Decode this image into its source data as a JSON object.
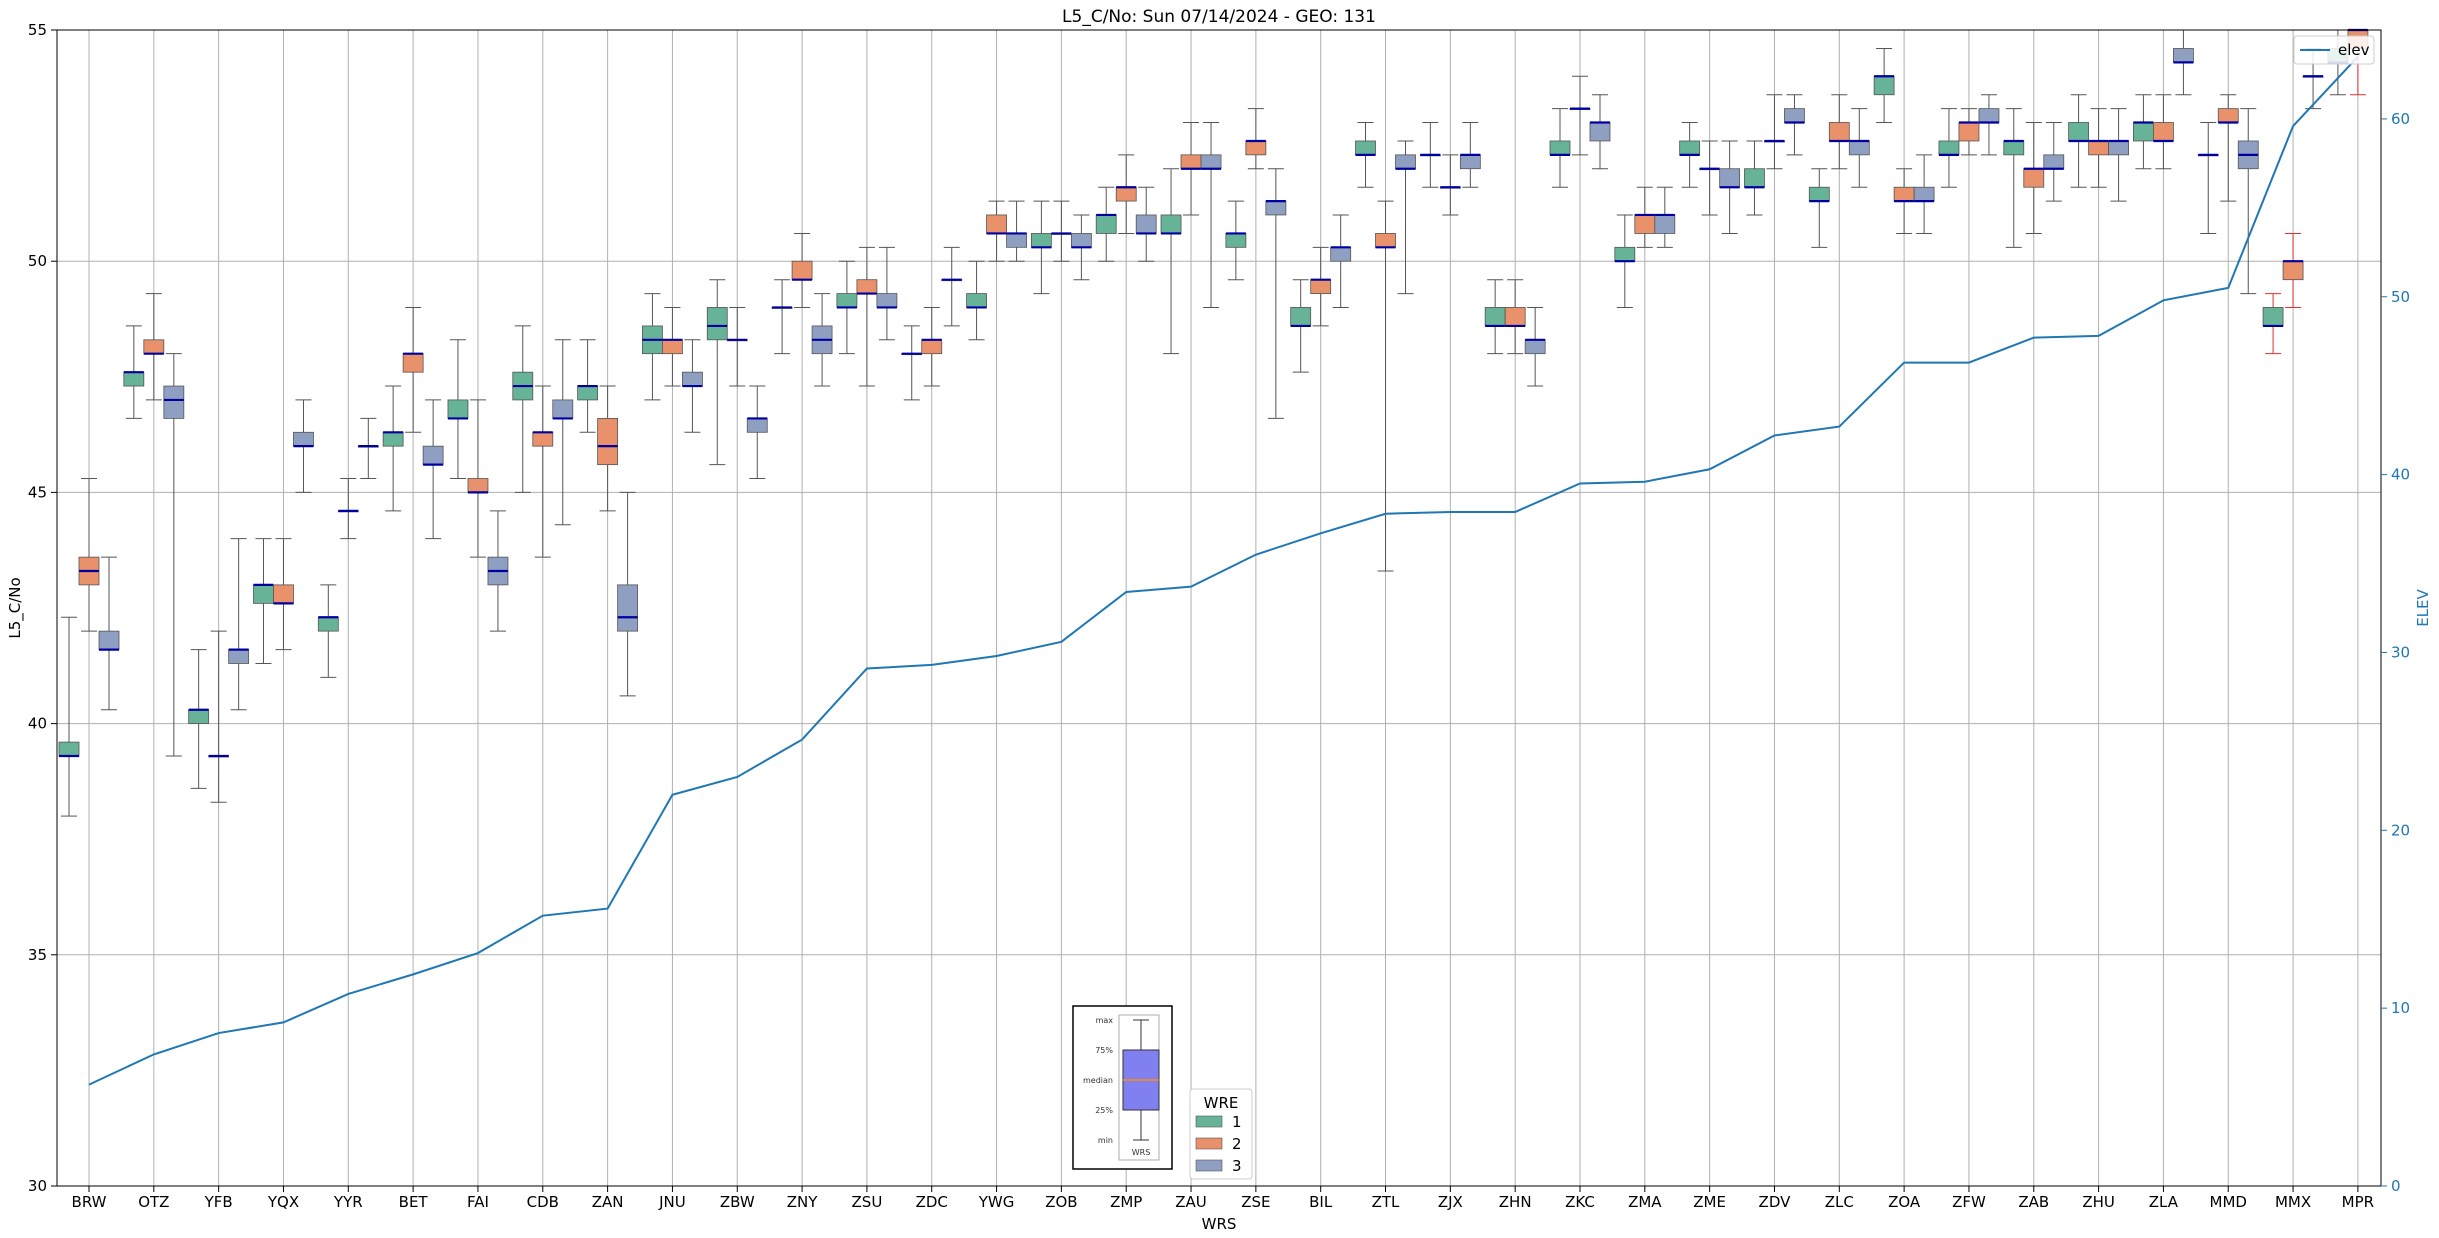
{
  "chart_data": {
    "type": "box",
    "title": "L5_C/No: Sun 07/14/2024 - GEO: 131",
    "xlabel": "WRS",
    "ylabel": "L5_C/No",
    "y2label": "ELEV",
    "ylim": [
      30,
      55
    ],
    "y2lim": [
      0,
      65
    ],
    "yticks": [
      30,
      35,
      40,
      45,
      50,
      55
    ],
    "y2ticks": [
      0,
      10,
      20,
      30,
      40,
      50,
      60
    ],
    "grid": true,
    "categories": [
      "BRW",
      "OTZ",
      "YFB",
      "YQX",
      "YYR",
      "BET",
      "FAI",
      "CDB",
      "ZAN",
      "JNU",
      "ZBW",
      "ZNY",
      "ZSU",
      "ZDC",
      "YWG",
      "ZOB",
      "ZMP",
      "ZAU",
      "ZSE",
      "BIL",
      "ZTL",
      "ZJX",
      "ZHN",
      "ZKC",
      "ZMA",
      "ZME",
      "ZDV",
      "ZLC",
      "ZOA",
      "ZFW",
      "ZAB",
      "ZHU",
      "ZLA",
      "MMD",
      "MMX",
      "MPR"
    ],
    "wre_colors": {
      "1": "#66b398",
      "2": "#e8916a",
      "3": "#8f9fc2"
    },
    "outlier_whisker_color": "#e03030",
    "boxes": [
      {
        "cat": "BRW",
        "wre": 1,
        "min": 38.0,
        "q1": 39.3,
        "med": 39.3,
        "q3": 39.6,
        "max": 42.3
      },
      {
        "cat": "BRW",
        "wre": 2,
        "min": 42.0,
        "q1": 43.0,
        "med": 43.3,
        "q3": 43.6,
        "max": 45.3
      },
      {
        "cat": "BRW",
        "wre": 3,
        "min": 40.3,
        "q1": 41.6,
        "med": 41.6,
        "q3": 42.0,
        "max": 43.6
      },
      {
        "cat": "OTZ",
        "wre": 1,
        "min": 46.6,
        "q1": 47.3,
        "med": 47.6,
        "q3": 47.6,
        "max": 48.6
      },
      {
        "cat": "OTZ",
        "wre": 2,
        "min": 47.0,
        "q1": 48.0,
        "med": 48.0,
        "q3": 48.3,
        "max": 49.3
      },
      {
        "cat": "OTZ",
        "wre": 3,
        "min": 39.3,
        "q1": 46.6,
        "med": 47.0,
        "q3": 47.3,
        "max": 48.0
      },
      {
        "cat": "YFB",
        "wre": 1,
        "min": 38.6,
        "q1": 40.0,
        "med": 40.3,
        "q3": 40.3,
        "max": 41.6
      },
      {
        "cat": "YFB",
        "wre": 2,
        "min": 38.3,
        "q1": 39.3,
        "med": 39.3,
        "q3": 39.3,
        "max": 42.0
      },
      {
        "cat": "YFB",
        "wre": 3,
        "min": 40.3,
        "q1": 41.3,
        "med": 41.6,
        "q3": 41.6,
        "max": 44.0
      },
      {
        "cat": "YQX",
        "wre": 1,
        "min": 41.3,
        "q1": 42.6,
        "med": 43.0,
        "q3": 43.0,
        "max": 44.0
      },
      {
        "cat": "YQX",
        "wre": 2,
        "min": 41.6,
        "q1": 42.6,
        "med": 42.6,
        "q3": 43.0,
        "max": 44.0
      },
      {
        "cat": "YQX",
        "wre": 3,
        "min": 45.0,
        "q1": 46.0,
        "med": 46.0,
        "q3": 46.3,
        "max": 47.0
      },
      {
        "cat": "YYR",
        "wre": 1,
        "min": 41.0,
        "q1": 42.0,
        "med": 42.3,
        "q3": 42.3,
        "max": 43.0
      },
      {
        "cat": "YYR",
        "wre": 2,
        "min": 44.0,
        "q1": 44.6,
        "med": 44.6,
        "q3": 44.6,
        "max": 45.3
      },
      {
        "cat": "YYR",
        "wre": 3,
        "min": 45.3,
        "q1": 46.0,
        "med": 46.0,
        "q3": 46.0,
        "max": 46.6
      },
      {
        "cat": "BET",
        "wre": 1,
        "min": 44.6,
        "q1": 46.0,
        "med": 46.3,
        "q3": 46.3,
        "max": 47.3
      },
      {
        "cat": "BET",
        "wre": 2,
        "min": 46.3,
        "q1": 47.6,
        "med": 48.0,
        "q3": 48.0,
        "max": 49.0
      },
      {
        "cat": "BET",
        "wre": 3,
        "min": 44.0,
        "q1": 45.6,
        "med": 45.6,
        "q3": 46.0,
        "max": 47.0
      },
      {
        "cat": "FAI",
        "wre": 1,
        "min": 45.3,
        "q1": 46.6,
        "med": 46.6,
        "q3": 47.0,
        "max": 48.3
      },
      {
        "cat": "FAI",
        "wre": 2,
        "min": 43.6,
        "q1": 45.0,
        "med": 45.0,
        "q3": 45.3,
        "max": 47.0
      },
      {
        "cat": "FAI",
        "wre": 3,
        "min": 42.0,
        "q1": 43.0,
        "med": 43.3,
        "q3": 43.6,
        "max": 44.6
      },
      {
        "cat": "CDB",
        "wre": 1,
        "min": 45.0,
        "q1": 47.0,
        "med": 47.3,
        "q3": 47.6,
        "max": 48.6
      },
      {
        "cat": "CDB",
        "wre": 2,
        "min": 43.6,
        "q1": 46.0,
        "med": 46.3,
        "q3": 46.3,
        "max": 47.3
      },
      {
        "cat": "CDB",
        "wre": 3,
        "min": 44.3,
        "q1": 46.6,
        "med": 46.6,
        "q3": 47.0,
        "max": 48.3
      },
      {
        "cat": "ZAN",
        "wre": 1,
        "min": 46.3,
        "q1": 47.0,
        "med": 47.3,
        "q3": 47.3,
        "max": 48.3
      },
      {
        "cat": "ZAN",
        "wre": 2,
        "min": 44.6,
        "q1": 45.6,
        "med": 46.0,
        "q3": 46.6,
        "max": 47.3
      },
      {
        "cat": "ZAN",
        "wre": 3,
        "min": 40.6,
        "q1": 42.0,
        "med": 42.3,
        "q3": 43.0,
        "max": 45.0
      },
      {
        "cat": "JNU",
        "wre": 1,
        "min": 47.0,
        "q1": 48.0,
        "med": 48.3,
        "q3": 48.6,
        "max": 49.3
      },
      {
        "cat": "JNU",
        "wre": 2,
        "min": 47.3,
        "q1": 48.0,
        "med": 48.3,
        "q3": 48.3,
        "max": 49.0
      },
      {
        "cat": "JNU",
        "wre": 3,
        "min": 46.3,
        "q1": 47.3,
        "med": 47.3,
        "q3": 47.6,
        "max": 48.3
      },
      {
        "cat": "ZBW",
        "wre": 1,
        "min": 45.6,
        "q1": 48.3,
        "med": 48.6,
        "q3": 49.0,
        "max": 49.6
      },
      {
        "cat": "ZBW",
        "wre": 2,
        "min": 47.3,
        "q1": 48.3,
        "med": 48.3,
        "q3": 48.3,
        "max": 49.0
      },
      {
        "cat": "ZBW",
        "wre": 3,
        "min": 45.3,
        "q1": 46.3,
        "med": 46.6,
        "q3": 46.6,
        "max": 47.3
      },
      {
        "cat": "ZNY",
        "wre": 1,
        "min": 48.0,
        "q1": 49.0,
        "med": 49.0,
        "q3": 49.0,
        "max": 49.6
      },
      {
        "cat": "ZNY",
        "wre": 2,
        "min": 49.0,
        "q1": 49.6,
        "med": 49.6,
        "q3": 50.0,
        "max": 50.6
      },
      {
        "cat": "ZNY",
        "wre": 3,
        "min": 47.3,
        "q1": 48.0,
        "med": 48.3,
        "q3": 48.6,
        "max": 49.3
      },
      {
        "cat": "ZSU",
        "wre": 1,
        "min": 48.0,
        "q1": 49.0,
        "med": 49.0,
        "q3": 49.3,
        "max": 50.0
      },
      {
        "cat": "ZSU",
        "wre": 2,
        "min": 47.3,
        "q1": 49.3,
        "med": 49.3,
        "q3": 49.6,
        "max": 50.3
      },
      {
        "cat": "ZSU",
        "wre": 3,
        "min": 48.3,
        "q1": 49.0,
        "med": 49.0,
        "q3": 49.3,
        "max": 50.3
      },
      {
        "cat": "ZDC",
        "wre": 1,
        "min": 47.0,
        "q1": 48.0,
        "med": 48.0,
        "q3": 48.0,
        "max": 48.6
      },
      {
        "cat": "ZDC",
        "wre": 2,
        "min": 47.3,
        "q1": 48.0,
        "med": 48.3,
        "q3": 48.3,
        "max": 49.0
      },
      {
        "cat": "ZDC",
        "wre": 3,
        "min": 48.6,
        "q1": 49.6,
        "med": 49.6,
        "q3": 49.6,
        "max": 50.3
      },
      {
        "cat": "YWG",
        "wre": 1,
        "min": 48.3,
        "q1": 49.0,
        "med": 49.0,
        "q3": 49.3,
        "max": 50.0
      },
      {
        "cat": "YWG",
        "wre": 2,
        "min": 50.0,
        "q1": 50.6,
        "med": 50.6,
        "q3": 51.0,
        "max": 51.3
      },
      {
        "cat": "YWG",
        "wre": 3,
        "min": 50.0,
        "q1": 50.3,
        "med": 50.6,
        "q3": 50.6,
        "max": 51.3
      },
      {
        "cat": "ZOB",
        "wre": 1,
        "min": 49.3,
        "q1": 50.3,
        "med": 50.3,
        "q3": 50.6,
        "max": 51.3
      },
      {
        "cat": "ZOB",
        "wre": 2,
        "min": 50.0,
        "q1": 50.6,
        "med": 50.6,
        "q3": 50.6,
        "max": 51.3
      },
      {
        "cat": "ZOB",
        "wre": 3,
        "min": 49.6,
        "q1": 50.3,
        "med": 50.3,
        "q3": 50.6,
        "max": 51.0
      },
      {
        "cat": "ZMP",
        "wre": 1,
        "min": 50.0,
        "q1": 50.6,
        "med": 51.0,
        "q3": 51.0,
        "max": 51.6
      },
      {
        "cat": "ZMP",
        "wre": 2,
        "min": 50.6,
        "q1": 51.3,
        "med": 51.6,
        "q3": 51.6,
        "max": 52.3
      },
      {
        "cat": "ZMP",
        "wre": 3,
        "min": 50.0,
        "q1": 50.6,
        "med": 50.6,
        "q3": 51.0,
        "max": 51.6
      },
      {
        "cat": "ZAU",
        "wre": 1,
        "min": 48.0,
        "q1": 50.6,
        "med": 50.6,
        "q3": 51.0,
        "max": 52.0
      },
      {
        "cat": "ZAU",
        "wre": 2,
        "min": 51.0,
        "q1": 52.0,
        "med": 52.0,
        "q3": 52.3,
        "max": 53.0
      },
      {
        "cat": "ZAU",
        "wre": 3,
        "min": 49.0,
        "q1": 52.0,
        "med": 52.0,
        "q3": 52.3,
        "max": 53.0
      },
      {
        "cat": "ZSE",
        "wre": 1,
        "min": 49.6,
        "q1": 50.3,
        "med": 50.6,
        "q3": 50.6,
        "max": 51.3
      },
      {
        "cat": "ZSE",
        "wre": 2,
        "min": 52.0,
        "q1": 52.3,
        "med": 52.6,
        "q3": 52.6,
        "max": 53.3
      },
      {
        "cat": "ZSE",
        "wre": 3,
        "min": 46.6,
        "q1": 51.0,
        "med": 51.3,
        "q3": 51.3,
        "max": 52.0
      },
      {
        "cat": "BIL",
        "wre": 1,
        "min": 47.6,
        "q1": 48.6,
        "med": 48.6,
        "q3": 49.0,
        "max": 49.6
      },
      {
        "cat": "BIL",
        "wre": 2,
        "min": 48.6,
        "q1": 49.3,
        "med": 49.6,
        "q3": 49.6,
        "max": 50.3
      },
      {
        "cat": "BIL",
        "wre": 3,
        "min": 49.0,
        "q1": 50.0,
        "med": 50.3,
        "q3": 50.3,
        "max": 51.0
      },
      {
        "cat": "ZTL",
        "wre": 1,
        "min": 51.6,
        "q1": 52.3,
        "med": 52.3,
        "q3": 52.6,
        "max": 53.0
      },
      {
        "cat": "ZTL",
        "wre": 2,
        "min": 43.3,
        "q1": 50.3,
        "med": 50.3,
        "q3": 50.6,
        "max": 51.3
      },
      {
        "cat": "ZTL",
        "wre": 3,
        "min": 49.3,
        "q1": 52.0,
        "med": 52.0,
        "q3": 52.3,
        "max": 52.6
      },
      {
        "cat": "ZJX",
        "wre": 1,
        "min": 51.6,
        "q1": 52.3,
        "med": 52.3,
        "q3": 52.3,
        "max": 53.0
      },
      {
        "cat": "ZJX",
        "wre": 2,
        "min": 51.0,
        "q1": 51.6,
        "med": 51.6,
        "q3": 51.6,
        "max": 52.3
      },
      {
        "cat": "ZJX",
        "wre": 3,
        "min": 51.6,
        "q1": 52.0,
        "med": 52.3,
        "q3": 52.3,
        "max": 53.0
      },
      {
        "cat": "ZHN",
        "wre": 1,
        "min": 48.0,
        "q1": 48.6,
        "med": 48.6,
        "q3": 49.0,
        "max": 49.6
      },
      {
        "cat": "ZHN",
        "wre": 2,
        "min": 48.0,
        "q1": 48.6,
        "med": 48.6,
        "q3": 49.0,
        "max": 49.6
      },
      {
        "cat": "ZHN",
        "wre": 3,
        "min": 47.3,
        "q1": 48.0,
        "med": 48.3,
        "q3": 48.3,
        "max": 49.0
      },
      {
        "cat": "ZKC",
        "wre": 1,
        "min": 51.6,
        "q1": 52.3,
        "med": 52.3,
        "q3": 52.6,
        "max": 53.3
      },
      {
        "cat": "ZKC",
        "wre": 2,
        "min": 52.3,
        "q1": 53.3,
        "med": 53.3,
        "q3": 53.3,
        "max": 54.0
      },
      {
        "cat": "ZKC",
        "wre": 3,
        "min": 52.0,
        "q1": 52.6,
        "med": 53.0,
        "q3": 53.0,
        "max": 53.6
      },
      {
        "cat": "ZMA",
        "wre": 1,
        "min": 49.0,
        "q1": 50.0,
        "med": 50.0,
        "q3": 50.3,
        "max": 51.0
      },
      {
        "cat": "ZMA",
        "wre": 2,
        "min": 50.3,
        "q1": 50.6,
        "med": 51.0,
        "q3": 51.0,
        "max": 51.6
      },
      {
        "cat": "ZMA",
        "wre": 3,
        "min": 50.3,
        "q1": 50.6,
        "med": 51.0,
        "q3": 51.0,
        "max": 51.6
      },
      {
        "cat": "ZME",
        "wre": 1,
        "min": 51.6,
        "q1": 52.3,
        "med": 52.3,
        "q3": 52.6,
        "max": 53.0
      },
      {
        "cat": "ZME",
        "wre": 2,
        "min": 51.0,
        "q1": 52.0,
        "med": 52.0,
        "q3": 52.0,
        "max": 52.6
      },
      {
        "cat": "ZME",
        "wre": 3,
        "min": 50.6,
        "q1": 51.6,
        "med": 51.6,
        "q3": 52.0,
        "max": 52.6
      },
      {
        "cat": "ZDV",
        "wre": 1,
        "min": 51.0,
        "q1": 51.6,
        "med": 51.6,
        "q3": 52.0,
        "max": 52.6
      },
      {
        "cat": "ZDV",
        "wre": 2,
        "min": 52.0,
        "q1": 52.6,
        "med": 52.6,
        "q3": 52.6,
        "max": 53.6
      },
      {
        "cat": "ZDV",
        "wre": 3,
        "min": 52.3,
        "q1": 53.0,
        "med": 53.0,
        "q3": 53.3,
        "max": 53.6
      },
      {
        "cat": "ZLC",
        "wre": 1,
        "min": 50.3,
        "q1": 51.3,
        "med": 51.3,
        "q3": 51.6,
        "max": 52.0
      },
      {
        "cat": "ZLC",
        "wre": 2,
        "min": 52.0,
        "q1": 52.6,
        "med": 52.6,
        "q3": 53.0,
        "max": 53.6
      },
      {
        "cat": "ZLC",
        "wre": 3,
        "min": 51.6,
        "q1": 52.3,
        "med": 52.6,
        "q3": 52.6,
        "max": 53.3
      },
      {
        "cat": "ZOA",
        "wre": 1,
        "min": 53.0,
        "q1": 53.6,
        "med": 54.0,
        "q3": 54.0,
        "max": 54.6
      },
      {
        "cat": "ZOA",
        "wre": 2,
        "min": 50.6,
        "q1": 51.3,
        "med": 51.3,
        "q3": 51.6,
        "max": 52.0
      },
      {
        "cat": "ZOA",
        "wre": 3,
        "min": 50.6,
        "q1": 51.3,
        "med": 51.3,
        "q3": 51.6,
        "max": 52.3
      },
      {
        "cat": "ZFW",
        "wre": 1,
        "min": 51.6,
        "q1": 52.3,
        "med": 52.3,
        "q3": 52.6,
        "max": 53.3
      },
      {
        "cat": "ZFW",
        "wre": 2,
        "min": 52.3,
        "q1": 52.6,
        "med": 53.0,
        "q3": 53.0,
        "max": 53.3
      },
      {
        "cat": "ZFW",
        "wre": 3,
        "min": 52.3,
        "q1": 53.0,
        "med": 53.0,
        "q3": 53.3,
        "max": 53.6
      },
      {
        "cat": "ZAB",
        "wre": 1,
        "min": 50.3,
        "q1": 52.3,
        "med": 52.6,
        "q3": 52.6,
        "max": 53.3
      },
      {
        "cat": "ZAB",
        "wre": 2,
        "min": 50.6,
        "q1": 51.6,
        "med": 52.0,
        "q3": 52.0,
        "max": 53.0
      },
      {
        "cat": "ZAB",
        "wre": 3,
        "min": 51.3,
        "q1": 52.0,
        "med": 52.0,
        "q3": 52.3,
        "max": 53.0
      },
      {
        "cat": "ZHU",
        "wre": 1,
        "min": 51.6,
        "q1": 52.6,
        "med": 52.6,
        "q3": 53.0,
        "max": 53.6
      },
      {
        "cat": "ZHU",
        "wre": 2,
        "min": 51.6,
        "q1": 52.3,
        "med": 52.6,
        "q3": 52.6,
        "max": 53.3
      },
      {
        "cat": "ZHU",
        "wre": 3,
        "min": 51.3,
        "q1": 52.3,
        "med": 52.6,
        "q3": 52.6,
        "max": 53.3
      },
      {
        "cat": "ZLA",
        "wre": 1,
        "min": 52.0,
        "q1": 52.6,
        "med": 53.0,
        "q3": 53.0,
        "max": 53.6
      },
      {
        "cat": "ZLA",
        "wre": 2,
        "min": 52.0,
        "q1": 52.6,
        "med": 52.6,
        "q3": 53.0,
        "max": 53.6
      },
      {
        "cat": "ZLA",
        "wre": 3,
        "min": 53.6,
        "q1": 54.3,
        "med": 54.3,
        "q3": 54.6,
        "max": 55.0
      },
      {
        "cat": "MMD",
        "wre": 1,
        "min": 50.6,
        "q1": 52.3,
        "med": 52.3,
        "q3": 52.3,
        "max": 53.0
      },
      {
        "cat": "MMD",
        "wre": 2,
        "min": 51.3,
        "q1": 53.0,
        "med": 53.0,
        "q3": 53.3,
        "max": 53.6
      },
      {
        "cat": "MMD",
        "wre": 3,
        "min": 49.3,
        "q1": 52.0,
        "med": 52.3,
        "q3": 52.6,
        "max": 53.3
      },
      {
        "cat": "MMX",
        "wre": 1,
        "min": 48.0,
        "q1": 48.6,
        "med": 48.6,
        "q3": 49.0,
        "max": 49.3,
        "red": true
      },
      {
        "cat": "MMX",
        "wre": 2,
        "min": 49.0,
        "q1": 49.6,
        "med": 50.0,
        "q3": 50.0,
        "max": 50.6,
        "red": true
      },
      {
        "cat": "MMX",
        "wre": 3,
        "min": 53.3,
        "q1": 54.0,
        "med": 54.0,
        "q3": 54.0,
        "max": 54.6
      },
      {
        "cat": "MPR",
        "wre": 1,
        "min": 53.6,
        "q1": 54.3,
        "med": 54.3,
        "q3": 54.6,
        "max": 55.0
      },
      {
        "cat": "MPR",
        "wre": 2,
        "min": 53.6,
        "q1": 54.6,
        "med": 55.0,
        "q3": 55.0,
        "max": 55.0,
        "red": true
      }
    ],
    "elev": {
      "name": "elev",
      "color": "#1f77b4",
      "values": [
        5.7,
        7.4,
        8.6,
        9.2,
        10.8,
        11.9,
        13.1,
        15.2,
        15.6,
        22.0,
        23.0,
        25.1,
        29.1,
        29.3,
        29.8,
        30.6,
        33.4,
        33.7,
        35.5,
        36.7,
        37.8,
        37.9,
        37.9,
        39.5,
        39.6,
        40.3,
        42.2,
        42.7,
        46.3,
        46.3,
        47.7,
        47.8,
        49.8,
        50.5,
        59.6,
        63.5
      ]
    },
    "legend_main": {
      "title": "WRE",
      "items": [
        "1",
        "2",
        "3"
      ],
      "placement": "lower-center"
    },
    "legend_elev": {
      "items": [
        "elev"
      ],
      "placement": "top-right"
    },
    "inset_key": {
      "labels": [
        "max",
        "75%",
        "median",
        "25%",
        "min"
      ],
      "xlabel": "WRS"
    }
  }
}
